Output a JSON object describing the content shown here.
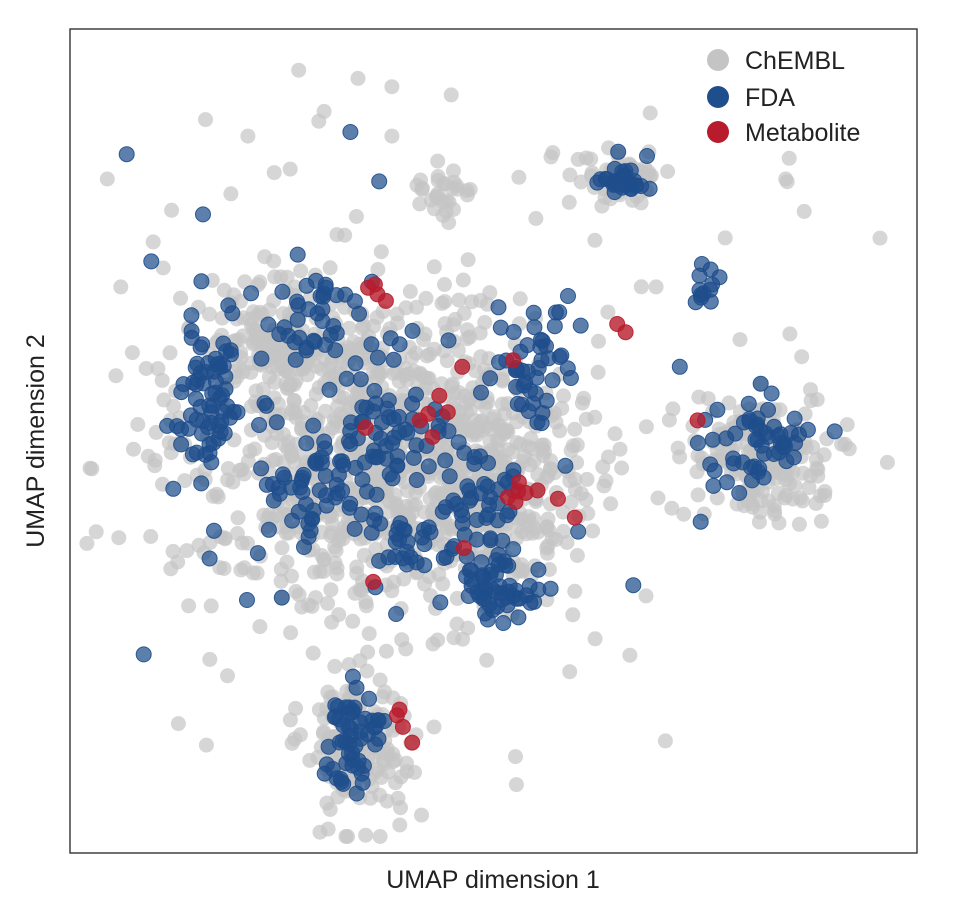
{
  "chart_data": {
    "type": "scatter",
    "title": "",
    "xlabel": "UMAP dimension 1",
    "ylabel": "UMAP dimension 2",
    "xlim": [
      0,
      100
    ],
    "ylim": [
      0,
      100
    ],
    "grid": false,
    "ticks": false,
    "legend_position": "top-right",
    "legend": [
      {
        "name": "ChEMBL",
        "color": "#c4c4c4"
      },
      {
        "name": "FDA",
        "color": "#1f4e8c"
      },
      {
        "name": "Metabolite",
        "color": "#b81c2c"
      }
    ],
    "series": [
      {
        "name": "ChEMBL",
        "color": "#c4c4c4",
        "opacity": 0.7,
        "clusters": [
          {
            "cx": 36,
            "cy": 51,
            "rx": 21,
            "ry": 18,
            "n": 900
          },
          {
            "cx": 25,
            "cy": 38,
            "rx": 8,
            "ry": 6,
            "n": 120
          },
          {
            "cx": 50,
            "cy": 55,
            "rx": 10,
            "ry": 10,
            "n": 220
          },
          {
            "cx": 34,
            "cy": 86.5,
            "rx": 5.5,
            "ry": 8,
            "n": 170
          },
          {
            "cx": 81,
            "cy": 52,
            "rx": 7,
            "ry": 7,
            "n": 180
          },
          {
            "cx": 65,
            "cy": 18,
            "rx": 4.5,
            "ry": 3,
            "n": 55
          },
          {
            "cx": 44,
            "cy": 20,
            "rx": 3,
            "ry": 3,
            "n": 30
          },
          {
            "cx": 82,
            "cy": 31,
            "rx": 14,
            "ry": 28,
            "n": 8
          }
        ],
        "points": [
          {
            "x": 41.5,
            "y": 95.4
          },
          {
            "x": 52.7,
            "y": 91.7
          },
          {
            "x": 52.6,
            "y": 88.3
          },
          {
            "x": 16.1,
            "y": 86.9
          },
          {
            "x": 12.8,
            "y": 84.3
          },
          {
            "x": 18.6,
            "y": 78.5
          },
          {
            "x": 16.5,
            "y": 76.5
          },
          {
            "x": 70.3,
            "y": 86.4
          },
          {
            "x": 66.1,
            "y": 76.0
          },
          {
            "x": 49.2,
            "y": 76.6
          },
          {
            "x": 51.4,
            "y": 70.6
          },
          {
            "x": 68.0,
            "y": 68.8
          },
          {
            "x": 56.6,
            "y": 65.6
          },
          {
            "x": 59.9,
            "y": 63.9
          },
          {
            "x": 13.8,
            "y": 63.3
          },
          {
            "x": 96.5,
            "y": 52.6
          },
          {
            "x": 91.5,
            "y": 50.4
          },
          {
            "x": 87.5,
            "y": 45.1
          },
          {
            "x": 79.1,
            "y": 37.7
          },
          {
            "x": 85.0,
            "y": 37.0
          },
          {
            "x": 62.4,
            "y": 37.9
          },
          {
            "x": 69.2,
            "y": 31.3
          },
          {
            "x": 84.5,
            "y": 18.2
          },
          {
            "x": 68.5,
            "y": 10.2
          },
          {
            "x": 4.4,
            "y": 18.2
          },
          {
            "x": 6.0,
            "y": 31.3
          },
          {
            "x": 9.0,
            "y": 41.2
          },
          {
            "x": 12.0,
            "y": 22.0
          },
          {
            "x": 19.0,
            "y": 20.0
          },
          {
            "x": 26.0,
            "y": 17.0
          },
          {
            "x": 21.0,
            "y": 13.0
          },
          {
            "x": 30.0,
            "y": 10.0
          },
          {
            "x": 34.0,
            "y": 6.0
          },
          {
            "x": 27.0,
            "y": 5.0
          },
          {
            "x": 38.0,
            "y": 13.0
          },
          {
            "x": 45.0,
            "y": 8.0
          },
          {
            "x": 38.0,
            "y": 7.0
          },
          {
            "x": 53.0,
            "y": 18.0
          },
          {
            "x": 57.0,
            "y": 15.0
          },
          {
            "x": 16.0,
            "y": 11.0
          },
          {
            "x": 11.0,
            "y": 29.0
          },
          {
            "x": 47.0,
            "y": 28.0
          },
          {
            "x": 55.0,
            "y": 23.0
          },
          {
            "x": 8.0,
            "y": 48.0
          },
          {
            "x": 10.0,
            "y": 53.0
          },
          {
            "x": 7.5,
            "y": 51.0
          },
          {
            "x": 14.0,
            "y": 70.0
          },
          {
            "x": 62.0,
            "y": 74.0
          },
          {
            "x": 59.0,
            "y": 78.0
          },
          {
            "x": 50.0,
            "y": 69.0
          },
          {
            "x": 35.0,
            "y": 70.0
          },
          {
            "x": 29.0,
            "y": 69.0
          },
          {
            "x": 25.0,
            "y": 69.0
          }
        ]
      },
      {
        "name": "FDA",
        "color": "#1f4e8c",
        "opacity": 0.72,
        "clusters": [
          {
            "cx": 16.5,
            "cy": 45,
            "rx": 3.5,
            "ry": 11,
            "n": 70
          },
          {
            "cx": 29.5,
            "cy": 55,
            "rx": 7,
            "ry": 8,
            "n": 60
          },
          {
            "cx": 38,
            "cy": 50,
            "rx": 7,
            "ry": 13,
            "n": 75
          },
          {
            "cx": 48,
            "cy": 57,
            "rx": 5,
            "ry": 6,
            "n": 40
          },
          {
            "cx": 49.5,
            "cy": 68,
            "rx": 5,
            "ry": 4,
            "n": 60
          },
          {
            "cx": 40.5,
            "cy": 62,
            "rx": 3,
            "ry": 3,
            "n": 20
          },
          {
            "cx": 55,
            "cy": 41,
            "rx": 4,
            "ry": 8,
            "n": 45
          },
          {
            "cx": 33,
            "cy": 86,
            "rx": 3,
            "ry": 6,
            "n": 55
          },
          {
            "cx": 81,
            "cy": 50,
            "rx": 6,
            "ry": 5,
            "n": 55
          },
          {
            "cx": 65,
            "cy": 18.5,
            "rx": 2.5,
            "ry": 2.2,
            "n": 28
          },
          {
            "cx": 74.5,
            "cy": 31.5,
            "rx": 1.2,
            "ry": 2.5,
            "n": 12
          },
          {
            "cx": 28,
            "cy": 35,
            "rx": 6,
            "ry": 6,
            "n": 35
          }
        ],
        "points": [
          {
            "x": 8.7,
            "y": 75.9
          },
          {
            "x": 20.9,
            "y": 69.3
          },
          {
            "x": 17.0,
            "y": 60.9
          },
          {
            "x": 12.2,
            "y": 55.8
          },
          {
            "x": 22.6,
            "y": 40.0
          },
          {
            "x": 9.6,
            "y": 28.2
          },
          {
            "x": 15.7,
            "y": 22.5
          },
          {
            "x": 36.5,
            "y": 18.5
          },
          {
            "x": 33.1,
            "y": 12.5
          },
          {
            "x": 6.7,
            "y": 15.2
          },
          {
            "x": 60.3,
            "y": 36.0
          },
          {
            "x": 58.8,
            "y": 32.4
          },
          {
            "x": 25.0,
            "y": 69.0
          },
          {
            "x": 38.5,
            "y": 71.0
          },
          {
            "x": 60.0,
            "y": 61.0
          },
          {
            "x": 66.5,
            "y": 67.5
          },
          {
            "x": 72.0,
            "y": 41.0
          }
        ]
      },
      {
        "name": "Metabolite",
        "color": "#b81c2c",
        "opacity": 0.8,
        "points": [
          {
            "x": 40.4,
            "y": 86.6
          },
          {
            "x": 39.3,
            "y": 84.7
          },
          {
            "x": 38.6,
            "y": 83.3
          },
          {
            "x": 38.9,
            "y": 82.6
          },
          {
            "x": 52.6,
            "y": 57.4
          },
          {
            "x": 51.7,
            "y": 56.8
          },
          {
            "x": 52.9,
            "y": 56.1
          },
          {
            "x": 53.8,
            "y": 56.3
          },
          {
            "x": 55.2,
            "y": 56.0
          },
          {
            "x": 53.0,
            "y": 55.0
          },
          {
            "x": 57.6,
            "y": 57.0
          },
          {
            "x": 59.6,
            "y": 59.3
          },
          {
            "x": 46.5,
            "y": 63.0
          },
          {
            "x": 35.8,
            "y": 67.1
          },
          {
            "x": 42.8,
            "y": 49.5
          },
          {
            "x": 41.3,
            "y": 47.5
          },
          {
            "x": 42.3,
            "y": 46.7
          },
          {
            "x": 44.6,
            "y": 46.5
          },
          {
            "x": 43.6,
            "y": 44.5
          },
          {
            "x": 46.3,
            "y": 41.0
          },
          {
            "x": 52.3,
            "y": 40.2
          },
          {
            "x": 34.9,
            "y": 48.4
          },
          {
            "x": 65.6,
            "y": 36.8
          },
          {
            "x": 64.6,
            "y": 35.8
          },
          {
            "x": 74.1,
            "y": 47.5
          },
          {
            "x": 35.2,
            "y": 31.4
          },
          {
            "x": 36.3,
            "y": 32.2
          },
          {
            "x": 37.3,
            "y": 33.0
          },
          {
            "x": 36.0,
            "y": 31.0
          }
        ]
      }
    ]
  }
}
